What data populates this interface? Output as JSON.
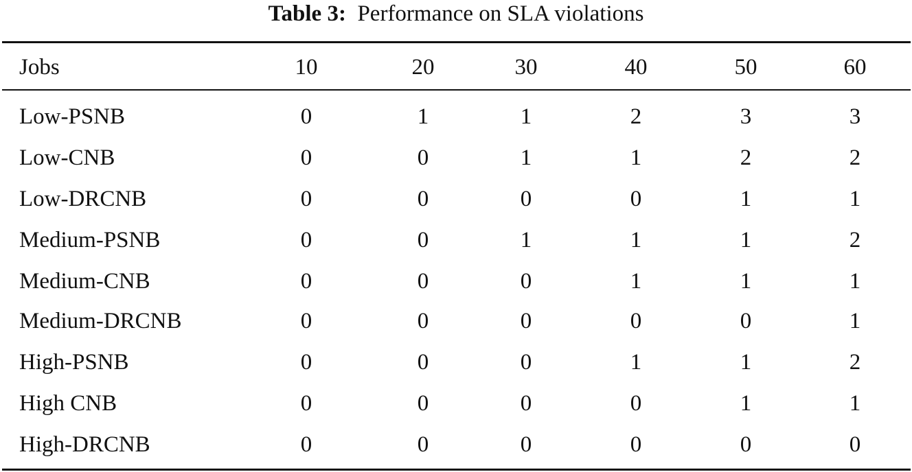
{
  "caption": {
    "label": "Table 3:",
    "text": "Performance on SLA violations"
  },
  "table": {
    "header": {
      "label": "Jobs",
      "columns": [
        "10",
        "20",
        "30",
        "40",
        "50",
        "60"
      ]
    },
    "rows": [
      {
        "label": "Low-PSNB",
        "values": [
          "0",
          "1",
          "1",
          "2",
          "3",
          "3"
        ]
      },
      {
        "label": "Low-CNB",
        "values": [
          "0",
          "0",
          "1",
          "1",
          "2",
          "2"
        ]
      },
      {
        "label": "Low-DRCNB",
        "values": [
          "0",
          "0",
          "0",
          "0",
          "1",
          "1"
        ]
      },
      {
        "label": "Medium-PSNB",
        "values": [
          "0",
          "0",
          "1",
          "1",
          "1",
          "2"
        ]
      },
      {
        "label": "Medium-CNB",
        "values": [
          "0",
          "0",
          "0",
          "1",
          "1",
          "1"
        ]
      },
      {
        "label": "Medium-DRCNB",
        "values": [
          "0",
          "0",
          "0",
          "0",
          "0",
          "1"
        ]
      },
      {
        "label": "High-PSNB",
        "values": [
          "0",
          "0",
          "0",
          "1",
          "1",
          "2"
        ]
      },
      {
        "label": "High CNB",
        "values": [
          "0",
          "0",
          "0",
          "0",
          "1",
          "1"
        ]
      },
      {
        "label": "High-DRCNB",
        "values": [
          "0",
          "0",
          "0",
          "0",
          "0",
          "0"
        ]
      }
    ]
  }
}
